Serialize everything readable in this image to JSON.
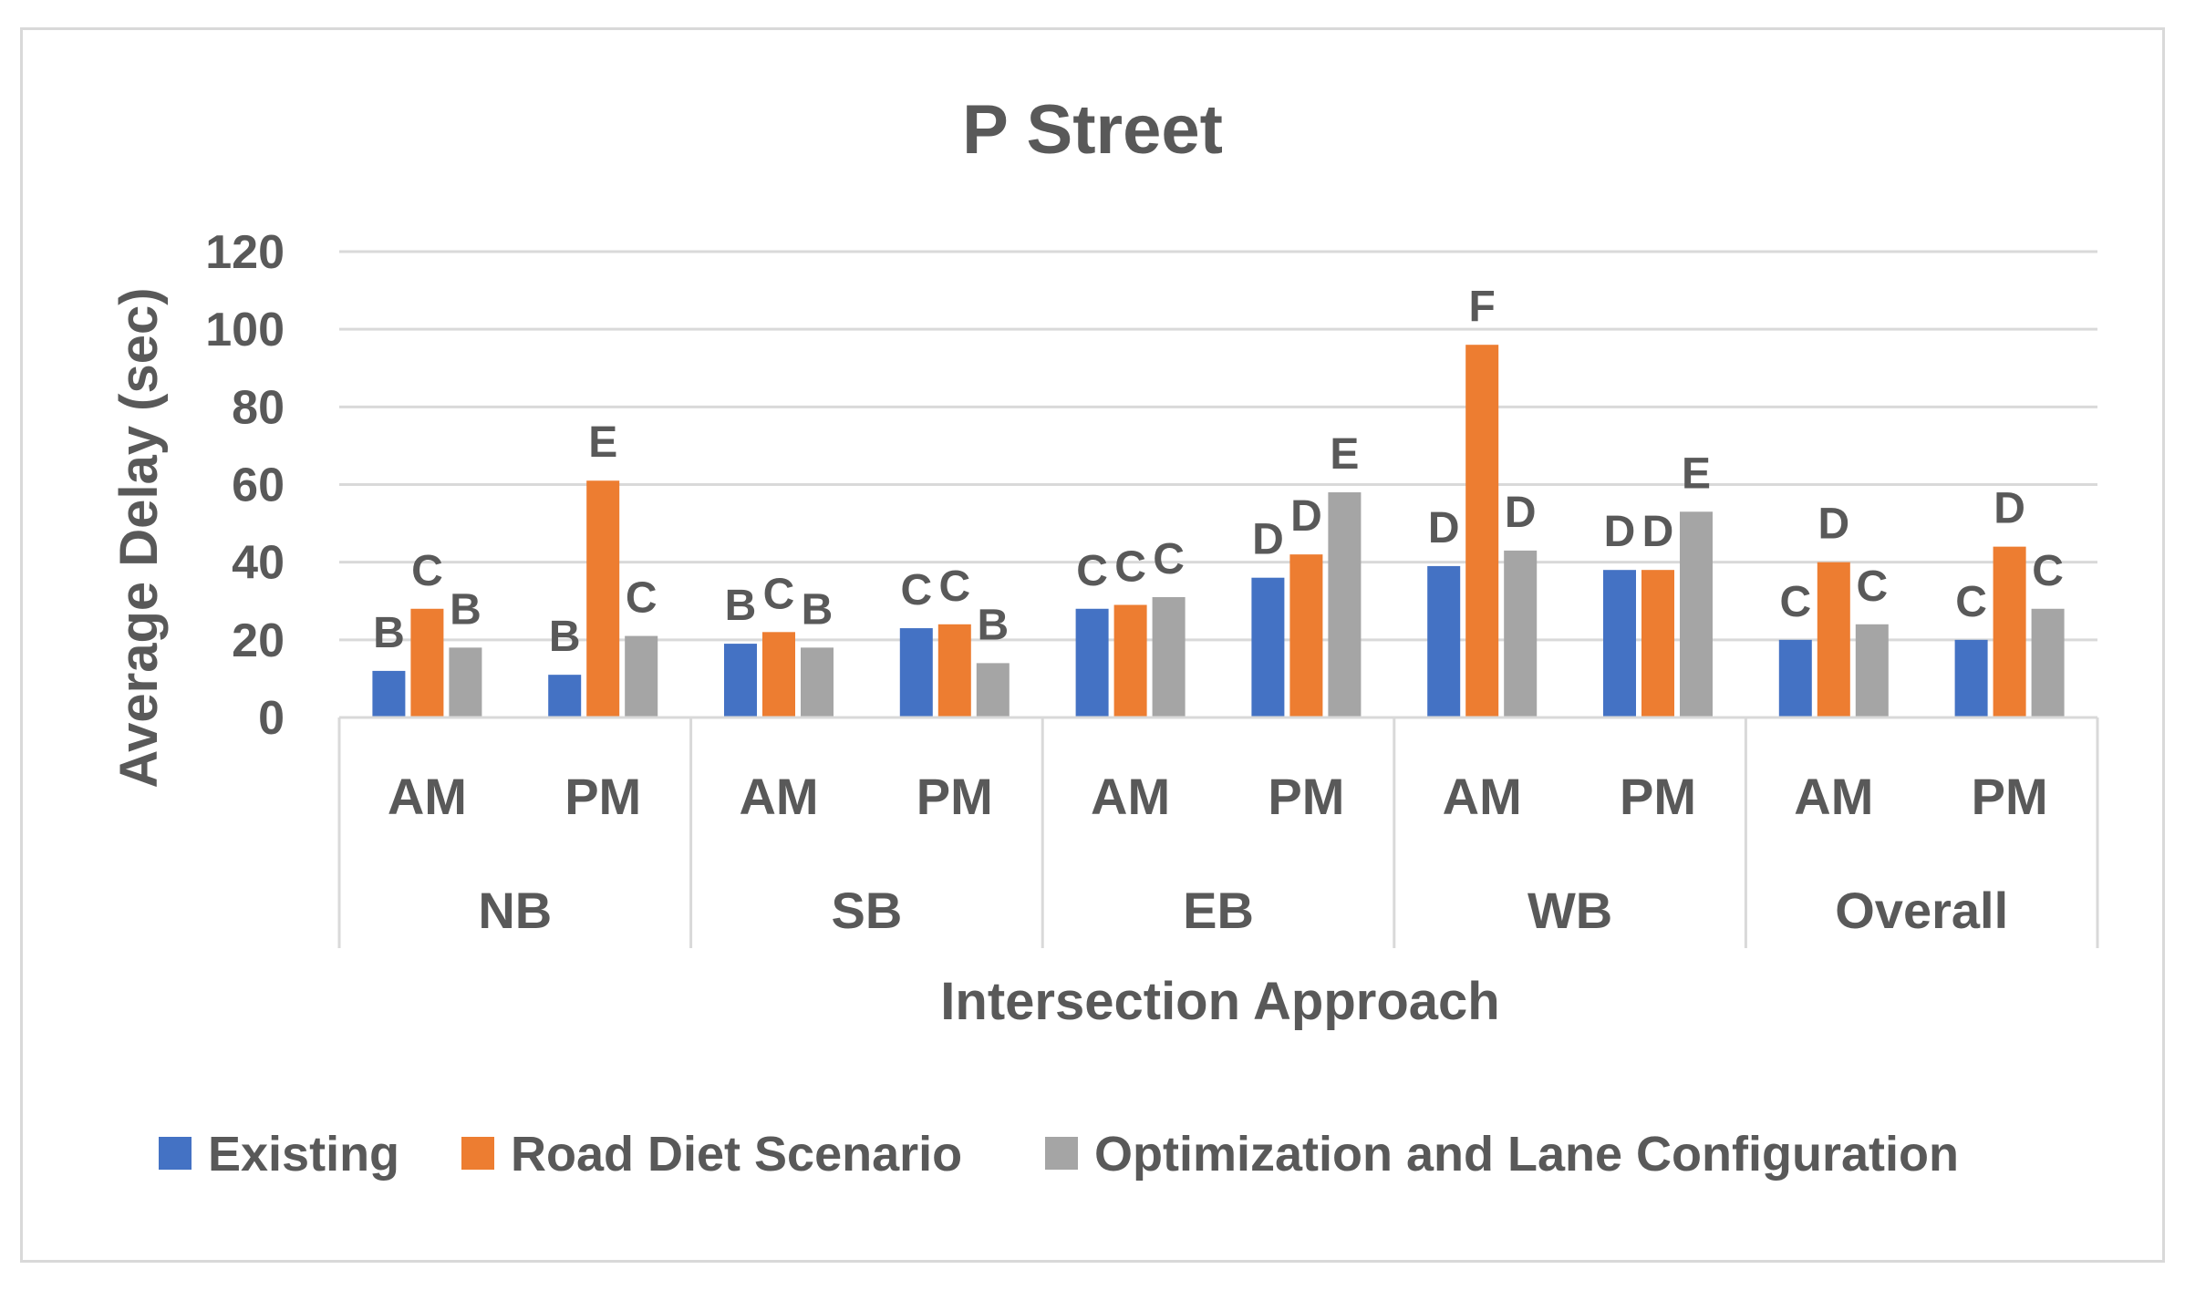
{
  "chart_data": {
    "type": "bar",
    "title": "P Street",
    "xlabel": "Intersection Approach",
    "ylabel": "Average Delay (sec)",
    "ylim": [
      0,
      120
    ],
    "yticks": [
      0,
      20,
      40,
      60,
      80,
      100,
      120
    ],
    "grid": true,
    "legend_position": "bottom",
    "groups": [
      "NB",
      "SB",
      "EB",
      "WB",
      "Overall"
    ],
    "periods": [
      "AM",
      "PM"
    ],
    "categories": [
      "NB AM",
      "NB PM",
      "SB AM",
      "SB PM",
      "EB AM",
      "EB PM",
      "WB AM",
      "WB PM",
      "Overall AM",
      "Overall PM"
    ],
    "series": [
      {
        "name": "Existing",
        "color": "#4472C4",
        "values": [
          12,
          11,
          19,
          23,
          28,
          36,
          39,
          38,
          20,
          20
        ],
        "los": [
          "B",
          "B",
          "B",
          "C",
          "C",
          "D",
          "D",
          "D",
          "C",
          "C"
        ]
      },
      {
        "name": "Road Diet Scenario",
        "color": "#ED7D31",
        "values": [
          28,
          61,
          22,
          24,
          29,
          42,
          96,
          38,
          40,
          44
        ],
        "los": [
          "C",
          "E",
          "C",
          "C",
          "C",
          "D",
          "F",
          "D",
          "D",
          "D"
        ]
      },
      {
        "name": "Optimization and Lane Configuration",
        "color": "#A5A5A5",
        "values": [
          18,
          21,
          18,
          14,
          31,
          58,
          43,
          53,
          24,
          28
        ],
        "los": [
          "B",
          "C",
          "B",
          "B",
          "C",
          "E",
          "D",
          "E",
          "C",
          "C"
        ]
      }
    ]
  }
}
